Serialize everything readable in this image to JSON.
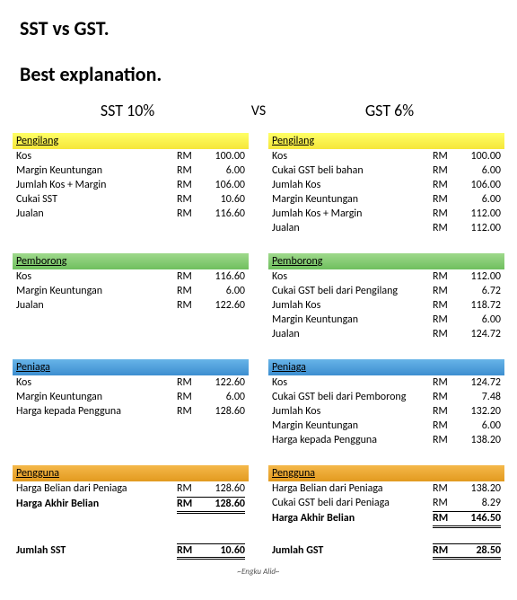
{
  "titles": {
    "line1": "SST vs GST.",
    "line2": "Best explanation."
  },
  "headings": {
    "left": "SST 10%",
    "vs": "VS",
    "right": "GST 6%"
  },
  "currency": "RM",
  "colors": {
    "yellow": "#ffff66",
    "green": "#9fd98c",
    "blue": "#67b4e8",
    "orange": "#f5b84a"
  },
  "credit": "~Engku Alid~",
  "left": {
    "sections": [
      {
        "header": "Pengilang",
        "class": "hdr-yellow",
        "rows": [
          {
            "label": "Kos",
            "val": "100.00"
          },
          {
            "label": "Margin Keuntungan",
            "val": "6.00"
          },
          {
            "label": "Jumlah Kos + Margin",
            "val": "106.00"
          },
          {
            "label": "Cukai SST",
            "val": "10.60"
          },
          {
            "label": "Jualan",
            "val": "116.60"
          }
        ]
      },
      {
        "header": "Pemborong",
        "class": "hdr-green",
        "rows": [
          {
            "label": "Kos",
            "val": "116.60"
          },
          {
            "label": "Margin Keuntungan",
            "val": "6.00"
          },
          {
            "label": "Jualan",
            "val": "122.60"
          }
        ]
      },
      {
        "header": "Peniaga",
        "class": "hdr-blue",
        "rows": [
          {
            "label": "Kos",
            "val": "122.60"
          },
          {
            "label": "Margin Keuntungan",
            "val": "6.00"
          },
          {
            "label": "Harga kepada Pengguna",
            "val": "128.60"
          }
        ]
      },
      {
        "header": "Pengguna",
        "class": "hdr-orange",
        "rows": [
          {
            "label": "Harga Belian dari Peniaga",
            "val": "128.60"
          },
          {
            "label": "Harga Akhir Belian",
            "val": "128.60",
            "bold": true,
            "final": true
          }
        ]
      }
    ],
    "total": {
      "label": "Jumlah SST",
      "val": "10.60"
    }
  },
  "right": {
    "sections": [
      {
        "header": "Pengilang",
        "class": "hdr-yellow",
        "rows": [
          {
            "label": "Kos",
            "val": "100.00"
          },
          {
            "label": "Cukai GST beli bahan",
            "val": "6.00"
          },
          {
            "label": "Jumlah Kos",
            "val": "106.00"
          },
          {
            "label": "Margin Keuntungan",
            "val": "6.00"
          },
          {
            "label": "Jumlah Kos + Margin",
            "val": "112.00"
          },
          {
            "label": "Jualan",
            "val": "112.00"
          }
        ]
      },
      {
        "header": "Pemborong",
        "class": "hdr-green",
        "rows": [
          {
            "label": "Kos",
            "val": "112.00"
          },
          {
            "label": "Cukai GST beli dari Pengilang",
            "val": "6.72"
          },
          {
            "label": "Jumlah Kos",
            "val": "118.72"
          },
          {
            "label": "Margin Keuntungan",
            "val": "6.00"
          },
          {
            "label": "Jualan",
            "val": "124.72"
          }
        ]
      },
      {
        "header": "Peniaga",
        "class": "hdr-blue",
        "rows": [
          {
            "label": "Kos",
            "val": "124.72"
          },
          {
            "label": "Cukai GST beli dari Pemborong",
            "val": "7.48"
          },
          {
            "label": "Jumlah Kos",
            "val": "132.20"
          },
          {
            "label": "Margin Keuntungan",
            "val": "6.00"
          },
          {
            "label": "Harga kepada Pengguna",
            "val": "138.20"
          }
        ]
      },
      {
        "header": "Pengguna",
        "class": "hdr-orange",
        "rows": [
          {
            "label": "Harga Belian dari Peniaga",
            "val": "138.20"
          },
          {
            "label": "Cukai GST beli dari Peniaga",
            "val": "8.29"
          },
          {
            "label": "Harga Akhir Belian",
            "val": "146.50",
            "bold": true,
            "final": true
          }
        ]
      }
    ],
    "total": {
      "label": "Jumlah GST",
      "val": "28.50"
    }
  }
}
